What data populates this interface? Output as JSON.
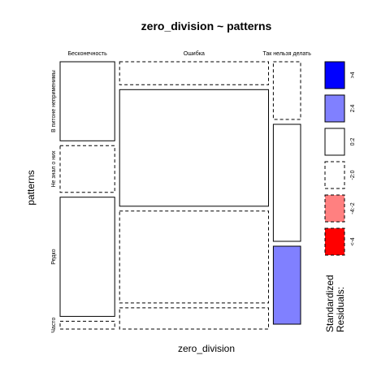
{
  "chart_data": {
    "type": "mosaic",
    "title": "zero_division ~ patterns",
    "xlabel": "zero_division",
    "ylabel": "patterns",
    "x_categories": [
      "Бесконечность",
      "Ошибка",
      "Так нельзя делать"
    ],
    "y_categories": [
      "В питоне неприменимы",
      "Не знал о них",
      "Редко",
      "Часто"
    ],
    "column_shares": [
      0.35,
      0.955,
      0.175
    ],
    "cells": [
      [
        {
          "share": 0.61,
          "residual_band": "0:2"
        },
        {
          "share": 0.36,
          "residual_band": "-2:0"
        },
        {
          "share": 0.92,
          "residual_band": "0:2"
        },
        {
          "share": 0.06,
          "residual_band": "-2:0"
        }
      ],
      [
        {
          "share": 0.13,
          "residual_band": "-2:0"
        },
        {
          "share": 0.66,
          "residual_band": "0:2"
        },
        {
          "share": 0.52,
          "residual_band": "-2:0"
        },
        {
          "share": 0.12,
          "residual_band": "-2:0"
        }
      ],
      [
        {
          "share": 0.37,
          "residual_band": "-2:0"
        },
        {
          "share": 0.75,
          "residual_band": "0:2"
        },
        {
          "share": 0.5,
          "residual_band": "2:4"
        },
        {
          "share": 0.0,
          "residual_band": "-2:0"
        }
      ]
    ],
    "legend": {
      "title": "Standardized\nResiduals:",
      "position": "right",
      "items": [
        {
          "label": ">4",
          "color": "#0000ff",
          "dashed": false
        },
        {
          "label": "2:4",
          "color": "#8080ff",
          "dashed": false
        },
        {
          "label": "0:2",
          "color": "#ffffff",
          "dashed": false
        },
        {
          "label": "-2:0",
          "color": "#ffffff",
          "dashed": true
        },
        {
          "label": "-4:-2",
          "color": "#ff8080",
          "dashed": true
        },
        {
          "label": "<-4",
          "color": "#ff0000",
          "dashed": true
        }
      ]
    }
  }
}
